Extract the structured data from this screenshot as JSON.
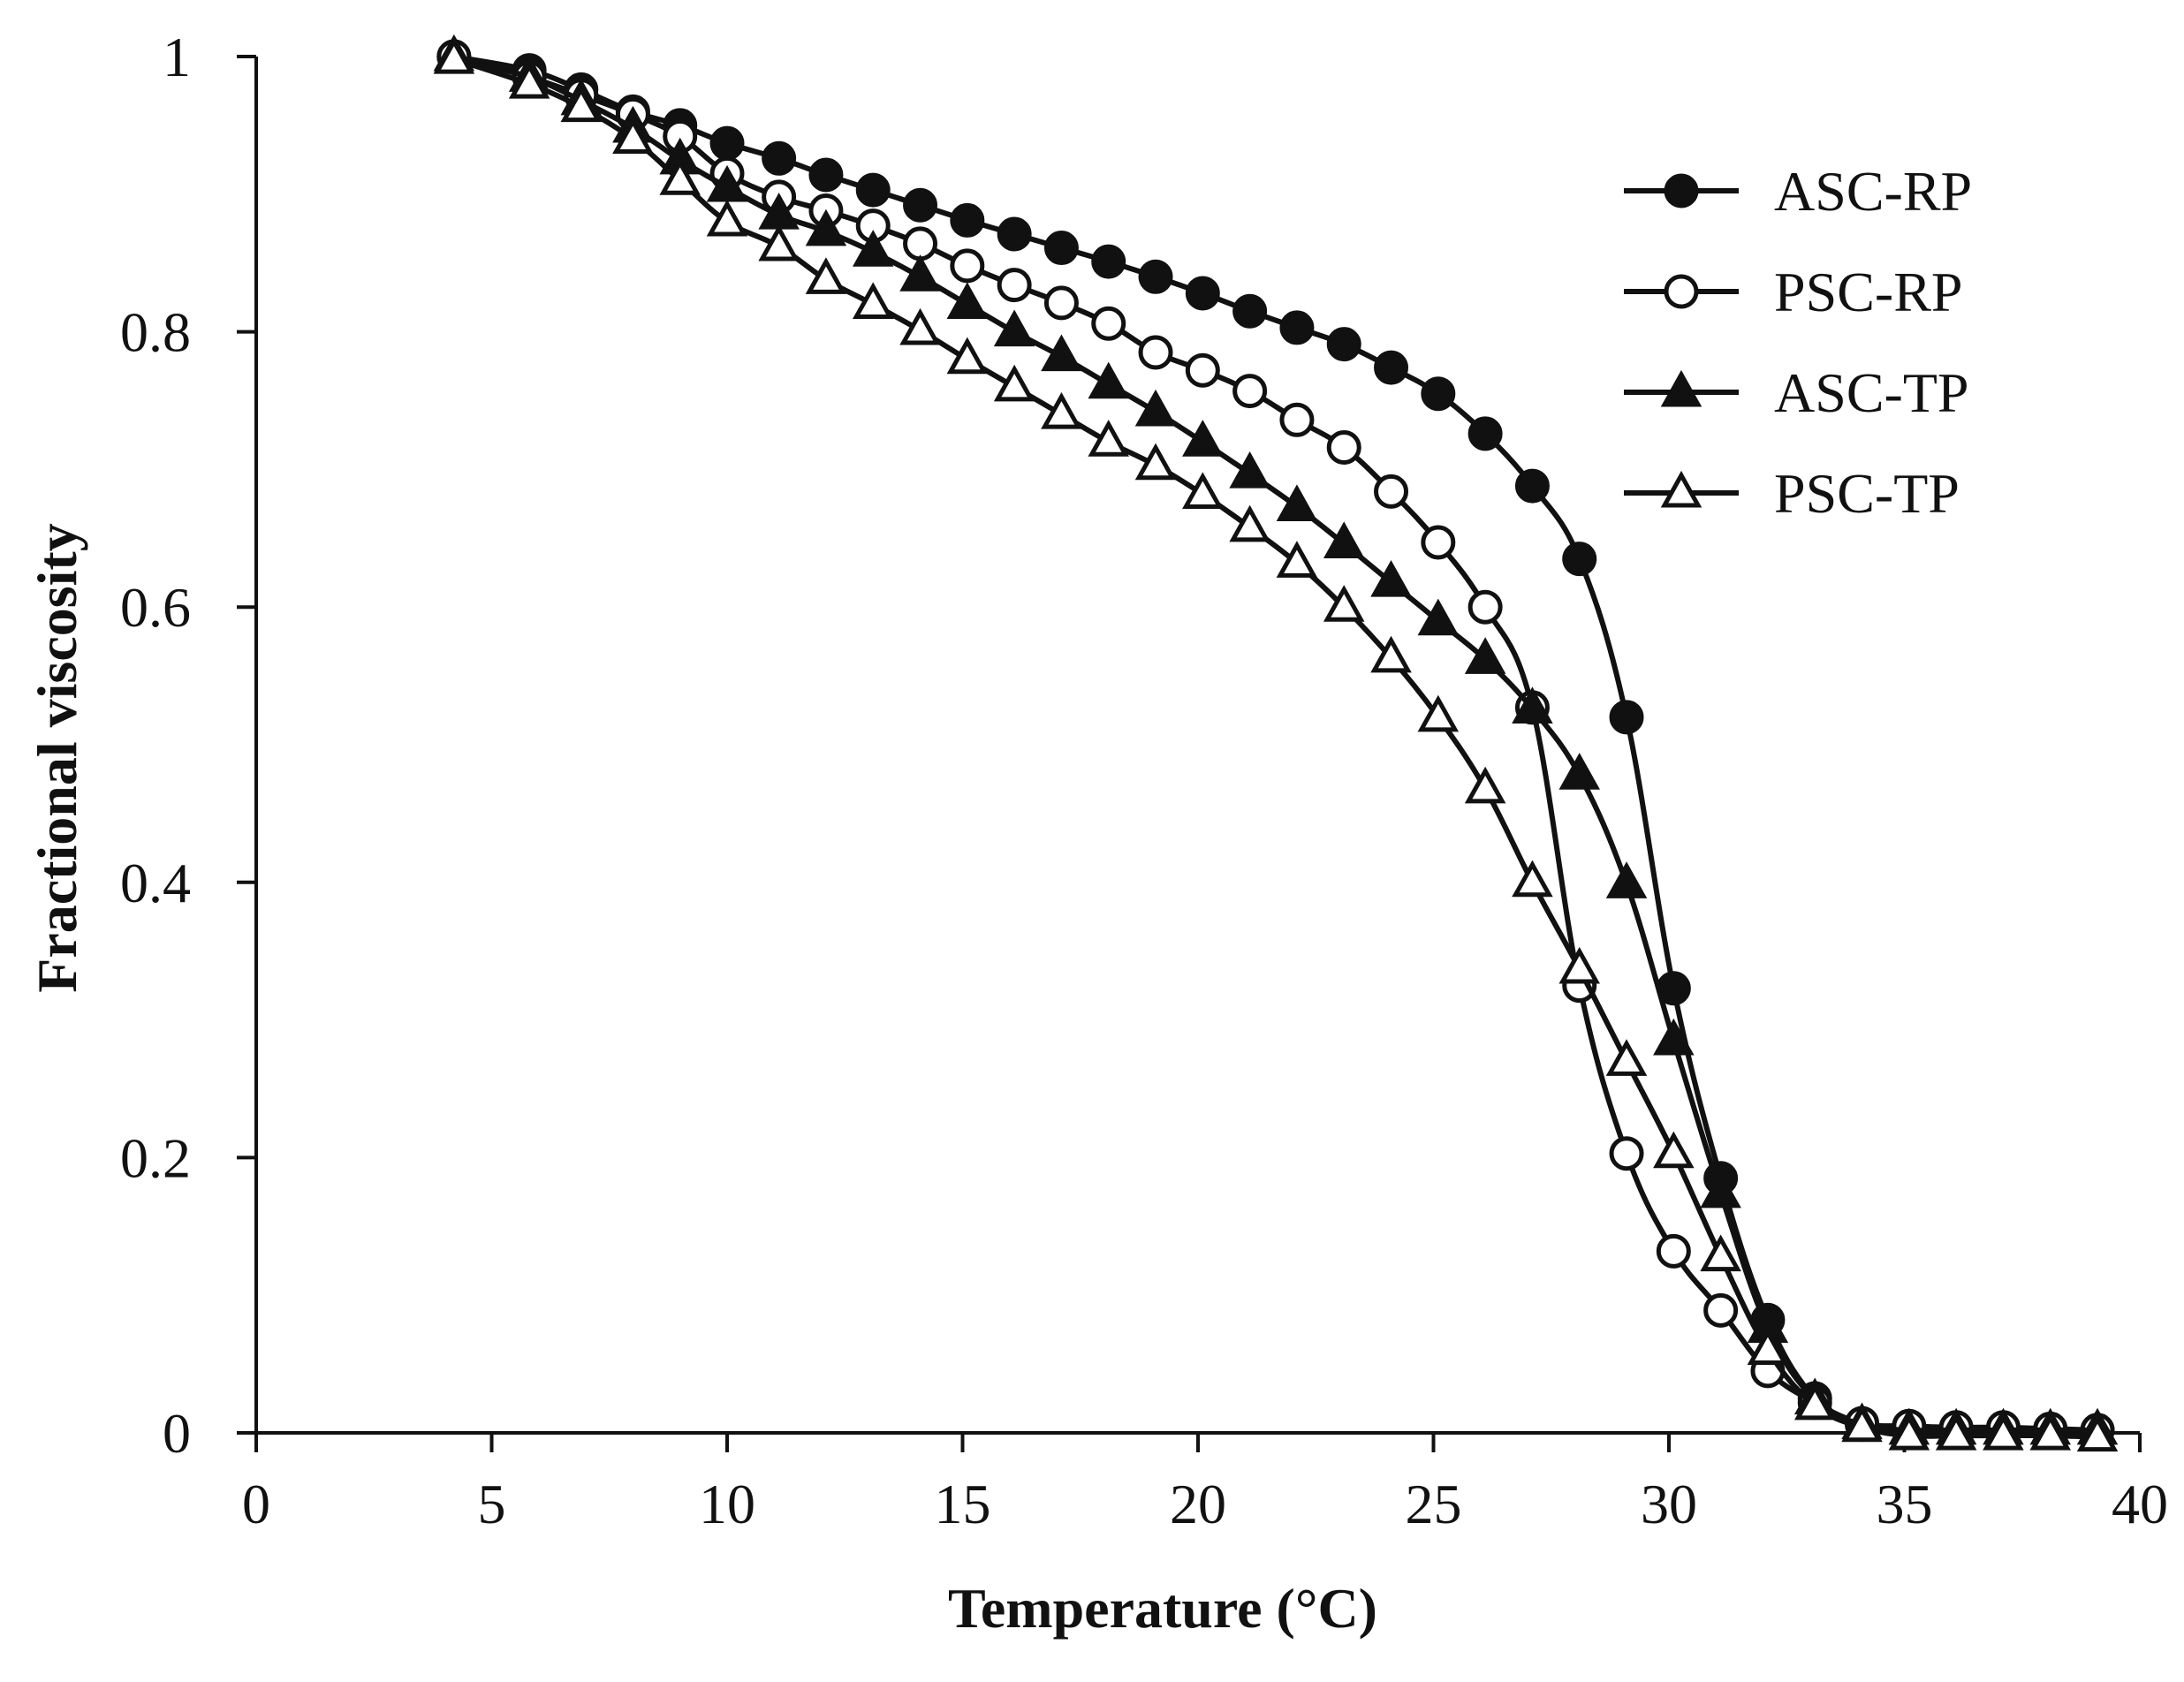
{
  "chart_data": {
    "type": "line",
    "title": "",
    "xlabel": "Temperature (°C)",
    "ylabel": "Fractional viscosity",
    "xlim": [
      0,
      40
    ],
    "ylim": [
      0,
      1
    ],
    "xticks": [
      0,
      5,
      10,
      15,
      20,
      25,
      30,
      35,
      40
    ],
    "yticks": [
      0,
      0.2,
      0.4,
      0.6,
      0.8,
      1
    ],
    "xtick_labels": [
      "0",
      "5",
      "10",
      "15",
      "20",
      "25",
      "30",
      "35",
      "40"
    ],
    "ytick_labels": [
      "0",
      "0.2",
      "0.4",
      "0.6",
      "0.8",
      "1"
    ],
    "grid": false,
    "legend_position": "top-right",
    "series": [
      {
        "name": "ASC-RP",
        "marker": "circle",
        "fill": "filled",
        "color": "#111111",
        "x": [
          4.2,
          5.8,
          6.9,
          8,
          9,
          10,
          11.1,
          12.1,
          13.1,
          14.1,
          15.1,
          16.1,
          17.1,
          18.1,
          19.1,
          20.1,
          21.1,
          22.1,
          23.1,
          24.1,
          25.1,
          26.1,
          27.1,
          28.1,
          29.1,
          30.1,
          31.1,
          32.1,
          33.1,
          34.1,
          35.1,
          36.1,
          37.1,
          38.1,
          39.1
        ],
        "values": [
          1.0,
          0.99,
          0.976,
          0.96,
          0.95,
          0.937,
          0.926,
          0.914,
          0.903,
          0.892,
          0.881,
          0.871,
          0.861,
          0.851,
          0.84,
          0.828,
          0.815,
          0.803,
          0.791,
          0.774,
          0.755,
          0.726,
          0.688,
          0.635,
          0.52,
          0.323,
          0.185,
          0.082,
          0.025,
          0.006,
          0.003,
          0.003,
          0.002,
          0.002,
          0.002
        ]
      },
      {
        "name": "PSC-RP",
        "marker": "circle",
        "fill": "open",
        "color": "#111111",
        "x": [
          4.2,
          5.8,
          6.9,
          8,
          9,
          10,
          11.1,
          12.1,
          13.1,
          14.1,
          15.1,
          16.1,
          17.1,
          18.1,
          19.1,
          20.1,
          21.1,
          22.1,
          23.1,
          24.1,
          25.1,
          26.1,
          27.1,
          28.1,
          29.1,
          30.1,
          31.1,
          32.1,
          33.1,
          34.1,
          35.1,
          36.1,
          37.1,
          38.1,
          39.1
        ],
        "values": [
          1.0,
          0.985,
          0.972,
          0.958,
          0.942,
          0.915,
          0.898,
          0.888,
          0.877,
          0.864,
          0.848,
          0.834,
          0.821,
          0.806,
          0.785,
          0.772,
          0.757,
          0.736,
          0.716,
          0.684,
          0.647,
          0.6,
          0.527,
          0.325,
          0.203,
          0.132,
          0.089,
          0.045,
          0.022,
          0.007,
          0.005,
          0.004,
          0.004,
          0.003,
          0.002
        ]
      },
      {
        "name": "ASC-TP",
        "marker": "triangle",
        "fill": "filled",
        "color": "#111111",
        "x": [
          4.2,
          5.8,
          6.9,
          8,
          9,
          10,
          11.1,
          12.1,
          13.1,
          14.1,
          15.1,
          16.1,
          17.1,
          18.1,
          19.1,
          20.1,
          21.1,
          22.1,
          23.1,
          24.1,
          25.1,
          26.1,
          27.1,
          28.1,
          29.1,
          30.1,
          31.1,
          32.1,
          33.1,
          34.1,
          35.1,
          36.1,
          37.1,
          38.1,
          39.1
        ],
        "values": [
          1.0,
          0.985,
          0.968,
          0.948,
          0.925,
          0.905,
          0.885,
          0.873,
          0.858,
          0.84,
          0.82,
          0.8,
          0.782,
          0.762,
          0.742,
          0.72,
          0.697,
          0.673,
          0.646,
          0.618,
          0.59,
          0.562,
          0.526,
          0.478,
          0.399,
          0.285,
          0.174,
          0.076,
          0.024,
          0.006,
          0.002,
          0.002,
          0.002,
          0.002,
          0.002
        ]
      },
      {
        "name": "PSC-TP",
        "marker": "triangle",
        "fill": "open",
        "color": "#111111",
        "x": [
          4.2,
          5.8,
          6.9,
          8,
          9,
          10,
          11.1,
          12.1,
          13.1,
          14.1,
          15.1,
          16.1,
          17.1,
          18.1,
          19.1,
          20.1,
          21.1,
          22.1,
          23.1,
          24.1,
          25.1,
          26.1,
          27.1,
          28.1,
          29.1,
          30.1,
          31.1,
          32.1,
          33.1,
          34.1,
          35.1,
          36.1,
          37.1,
          38.1,
          39.1
        ],
        "values": [
          0.998,
          0.98,
          0.963,
          0.94,
          0.91,
          0.88,
          0.862,
          0.838,
          0.82,
          0.801,
          0.78,
          0.76,
          0.74,
          0.72,
          0.703,
          0.682,
          0.658,
          0.632,
          0.6,
          0.563,
          0.52,
          0.468,
          0.4,
          0.337,
          0.27,
          0.203,
          0.128,
          0.06,
          0.02,
          0.004,
          -0.002,
          -0.002,
          -0.002,
          -0.002,
          -0.003
        ]
      }
    ]
  }
}
